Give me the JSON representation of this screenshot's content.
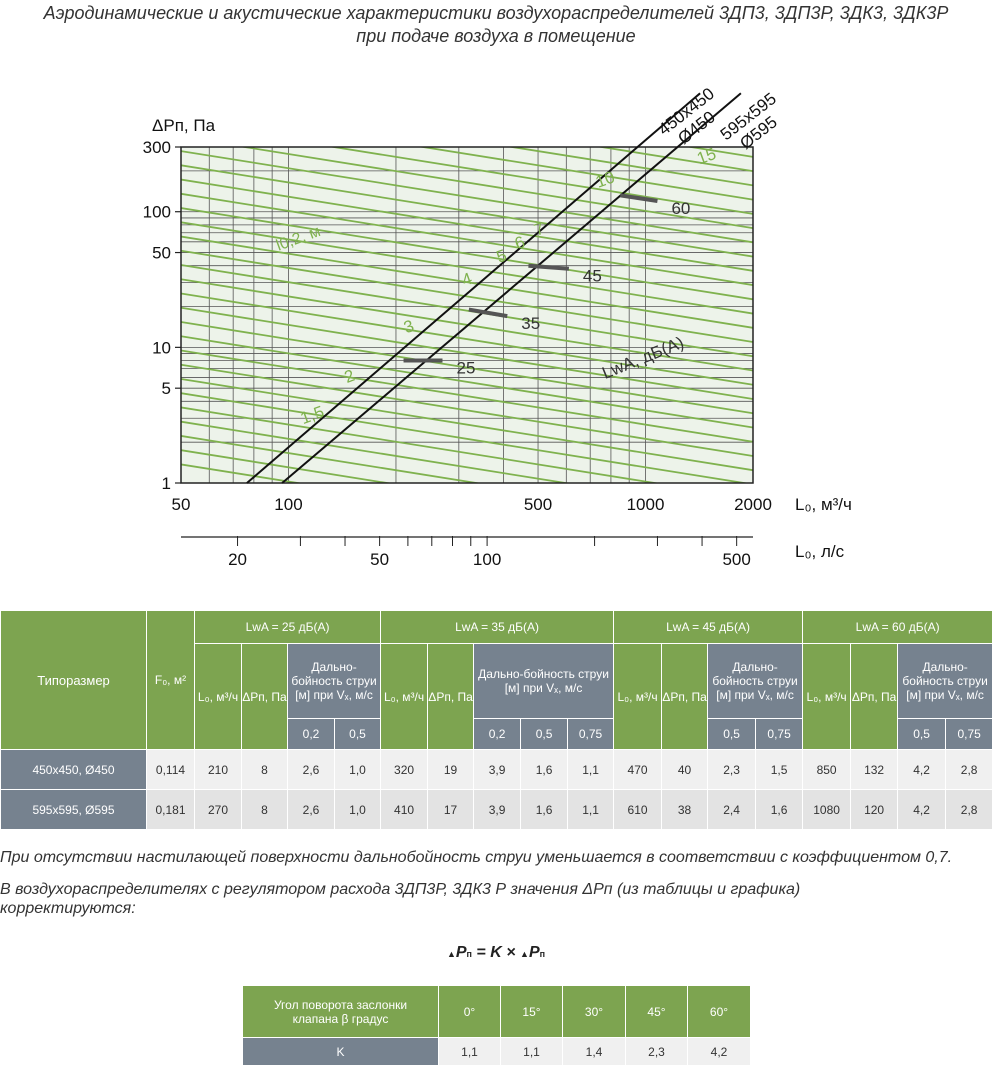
{
  "title_line1": "Аэродинамические и акустические характеристики воздухораспределителей 3ДП3, 3ДП3Р, 3ДК3, 3ДК3Р",
  "title_line2": "при подаче воздуха в помещение",
  "chart_data": {
    "type": "line",
    "x_scale": "log",
    "y_scale": "log",
    "xlim": [
      50,
      2000
    ],
    "ylim": [
      1,
      300
    ],
    "ylabel": "ΔPп, Па",
    "xlabel": "L₀, м³/ч",
    "x2label": "L₀, л/с",
    "x_ticks": [
      50,
      100,
      500,
      1000,
      2000
    ],
    "x2_ticks": [
      20,
      50,
      100,
      500
    ],
    "y_ticks": [
      1,
      5,
      10,
      50,
      100,
      300
    ],
    "series": [
      {
        "name": "450x450 Ø450",
        "x": [
          76.5,
          950
        ],
        "y": [
          1,
          300
        ]
      },
      {
        "name": "595x595 Ø595",
        "x": [
          96,
          1230
        ],
        "y": [
          1,
          300
        ]
      }
    ],
    "series_labels": [
      [
        "450x450",
        "Ø450"
      ],
      [
        "595x595",
        "Ø595"
      ]
    ],
    "throw_lines_label": "l0,2, м",
    "throw_lines": [
      {
        "label": "1,5",
        "at": [
          118,
          2.9
        ]
      },
      {
        "label": "2",
        "at": [
          150,
          5.6
        ]
      },
      {
        "label": "3",
        "at": [
          220,
          13
        ]
      },
      {
        "label": "4",
        "at": [
          320,
          29
        ]
      },
      {
        "label": "5",
        "at": [
          400,
          43
        ]
      },
      {
        "label": "6",
        "at": [
          450,
          54
        ]
      },
      {
        "label": "7",
        "at": [
          510,
          68
        ]
      },
      {
        "label": "10",
        "at": [
          780,
          158
        ]
      },
      {
        "label": "15",
        "at": [
          1500,
          235
        ]
      }
    ],
    "lwa_label": "LwA, дБ(А)",
    "lwa_levels": [
      {
        "label": "25",
        "x": [
          210,
          270
        ],
        "y": [
          8,
          8
        ]
      },
      {
        "label": "35",
        "x": [
          320,
          410
        ],
        "y": [
          19,
          17
        ]
      },
      {
        "label": "45",
        "x": [
          470,
          610
        ],
        "y": [
          40,
          38
        ]
      },
      {
        "label": "60",
        "x": [
          850,
          1080
        ],
        "y": [
          132,
          120
        ]
      }
    ]
  },
  "table1": {
    "col_size": "Типоразмер",
    "col_area": "F₀, м²",
    "groups": [
      "LwA = 25 дБ(А)",
      "LwA = 35 дБ(А)",
      "LwA = 45 дБ(А)",
      "LwA = 60 дБ(А)"
    ],
    "sub_flow": "L₀, м³/ч",
    "sub_dp": "ΔPп, Па",
    "sub_throw": "Дально-бойность струи [м] при Vₓ, м/с",
    "velocities": [
      [
        "0,2",
        "0,5"
      ],
      [
        "0,2",
        "0,5",
        "0,75"
      ],
      [
        "0,5",
        "0,75"
      ],
      [
        "0,5",
        "0,75"
      ]
    ],
    "rows": [
      {
        "size": "450x450, Ø450",
        "values": [
          "0,114",
          "210",
          "8",
          "2,6",
          "1,0",
          "320",
          "19",
          "3,9",
          "1,6",
          "1,1",
          "470",
          "40",
          "2,3",
          "1,5",
          "850",
          "132",
          "4,2",
          "2,8"
        ]
      },
      {
        "size": "595x595, Ø595",
        "values": [
          "0,181",
          "270",
          "8",
          "2,6",
          "1,0",
          "410",
          "17",
          "3,9",
          "1,6",
          "1,1",
          "610",
          "38",
          "2,4",
          "1,6",
          "1080",
          "120",
          "4,2",
          "2,8"
        ]
      }
    ]
  },
  "note1": "При отсутствии настилающей поверхности дальнобойность струи уменьшается в соответствии с коэффициентом 0,7.",
  "note2a": "В воздухораспределителях с регулятором расхода 3ДП3Р, 3ДК3 Р значения ΔPп (из таблицы и графика)",
  "note2b": "корректируются:",
  "formula": {
    "p": "P",
    "n": "п",
    "eq": " = ",
    "k": "K",
    "x": " × ",
    "delta": "▲"
  },
  "table2": {
    "header": "Угол поворота заслонки клапана β градус",
    "angles": [
      "0°",
      "15°",
      "30°",
      "45°",
      "60°"
    ],
    "row_label": "K",
    "values": [
      "1,1",
      "1,1",
      "1,4",
      "2,3",
      "4,2"
    ]
  },
  "colors": {
    "green": "#7da450",
    "slate": "#76828f",
    "chart_bg": "#edf3ea",
    "green_line": "#7fb24e"
  }
}
